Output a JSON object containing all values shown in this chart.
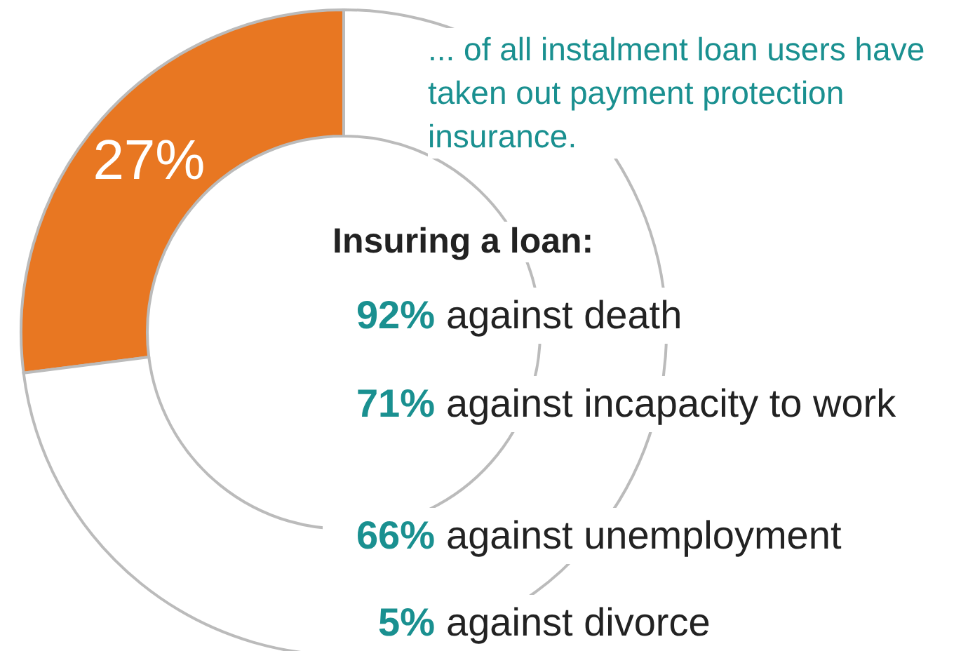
{
  "chart_data": {
    "type": "donut",
    "categories": [
      null,
      null
    ],
    "values": [
      27,
      73
    ],
    "colors": [
      "#e87722",
      "#ffffff"
    ],
    "value_labels": [
      "27%",
      null
    ],
    "annotations": [
      "... of all instalment loan users have taken out payment protection insurance.",
      "Insuring a loan:",
      "92% against death",
      "71% against incapacity to work",
      "66% against unemployment",
      "5% against divorce"
    ]
  }
}
